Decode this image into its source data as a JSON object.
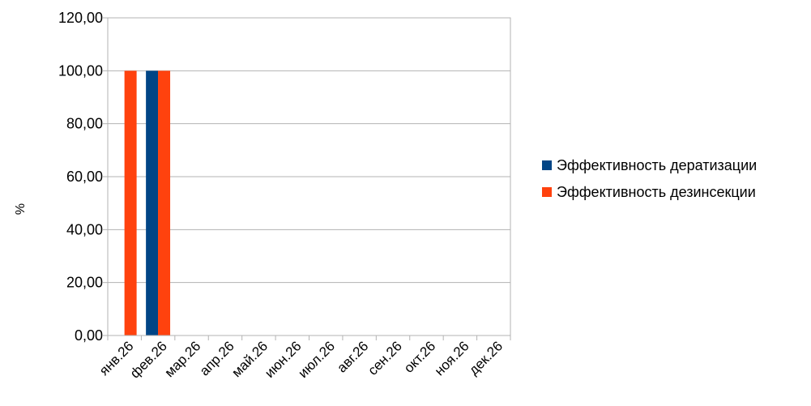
{
  "chart_data": {
    "type": "bar",
    "categories": [
      "янв.26",
      "фев.26",
      "мар.26",
      "апр.26",
      "май.26",
      "июн.26",
      "июл.26",
      "авг.26",
      "сен.26",
      "окт.26",
      "ноя.26",
      "дек.26"
    ],
    "series": [
      {
        "name": "Эффективность дератизации",
        "color": "#004586",
        "values": [
          0,
          100,
          0,
          0,
          0,
          0,
          0,
          0,
          0,
          0,
          0,
          0
        ]
      },
      {
        "name": "Эффективность дезинсекции",
        "color": "#ff420e",
        "values": [
          100,
          100,
          0,
          0,
          0,
          0,
          0,
          0,
          0,
          0,
          0,
          0
        ]
      }
    ],
    "yticks": [
      "0,00",
      "20,00",
      "40,00",
      "60,00",
      "80,00",
      "100,00",
      "120,00"
    ],
    "ylim": [
      0,
      120
    ],
    "ylabel": "%",
    "xlabel": "",
    "grid": true,
    "legend_position": "right"
  }
}
